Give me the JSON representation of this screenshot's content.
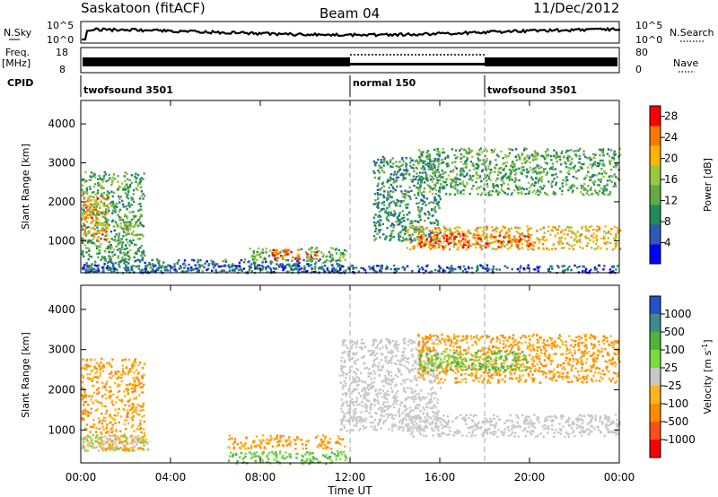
{
  "header": {
    "station": "Saskatoon (fitACF)",
    "beam": "Beam 04",
    "date": "11/Dec/2012"
  },
  "top_panels": {
    "nsky_label": "N.Sky",
    "nsearch_label": "N.Search",
    "noise_axis_top": "10^5",
    "noise_axis_bottom": "10^0",
    "freq_label_line1": "Freq.",
    "freq_label_line2": "[MHz]",
    "freq_ticks": [
      18,
      8
    ],
    "nave_ticks": [
      80,
      0
    ],
    "nave_label": "Nave",
    "cpid_label": "CPID",
    "cpid_segments": [
      {
        "label": "twofsound 3501",
        "start_hour": 0,
        "end_hour": 12
      },
      {
        "label": "normal 150",
        "start_hour": 12,
        "end_hour": 18
      },
      {
        "label": "twofsound 3501",
        "start_hour": 18,
        "end_hour": 24
      }
    ]
  },
  "chart_data": [
    {
      "type": "heatmap",
      "panel": "power",
      "title": "",
      "xlabel": "Time UT",
      "ylabel": "Slant Range [km]",
      "xlim": [
        0,
        24
      ],
      "ylim": [
        180,
        4600
      ],
      "y_ticks": [
        1000,
        2000,
        3000,
        4000
      ],
      "x_tick_labels": [
        "00:00",
        "04:00",
        "08:00",
        "12:00",
        "16:00",
        "20:00",
        "00:00"
      ],
      "x_tick_hours": [
        0,
        4,
        8,
        12,
        16,
        20,
        24
      ],
      "colorbar": {
        "label": "Power [dB]",
        "ticks": [
          4,
          8,
          12,
          16,
          20,
          24,
          28
        ],
        "range": [
          0,
          30
        ],
        "colors": [
          "#0000ff",
          "#2d5ab4",
          "#1e8c5a",
          "#64aa46",
          "#96c83c",
          "#ffb400",
          "#ff7800",
          "#ff0000"
        ]
      },
      "scatter_regions": [
        {
          "t": [
            0.0,
            2.8
          ],
          "r": [
            500,
            2800
          ],
          "value": 12
        },
        {
          "t": [
            0.0,
            1.2
          ],
          "r": [
            1000,
            2200
          ],
          "value": 22
        },
        {
          "t": [
            1.5,
            2.6
          ],
          "r": [
            1150,
            1600
          ],
          "value": 14
        },
        {
          "t": [
            0.0,
            11.5
          ],
          "r": [
            200,
            550
          ],
          "value": 8
        },
        {
          "t": [
            7.5,
            11.8
          ],
          "r": [
            500,
            850
          ],
          "value": 14
        },
        {
          "t": [
            8.5,
            10.5
          ],
          "r": [
            550,
            800
          ],
          "value": 27
        },
        {
          "t": [
            13.0,
            16.0
          ],
          "r": [
            1000,
            3200
          ],
          "value": 10
        },
        {
          "t": [
            14.5,
            24.0
          ],
          "r": [
            800,
            1400
          ],
          "value": 20
        },
        {
          "t": [
            15.0,
            20.0
          ],
          "r": [
            850,
            1200
          ],
          "value": 26
        },
        {
          "t": [
            15.0,
            24.0
          ],
          "r": [
            2200,
            3400
          ],
          "value": 12
        },
        {
          "t": [
            0.0,
            24.0
          ],
          "r": [
            200,
            400
          ],
          "value": 6
        }
      ]
    },
    {
      "type": "heatmap",
      "panel": "velocity",
      "title": "",
      "xlabel": "Time UT",
      "ylabel": "Slant Range [km]",
      "xlim": [
        0,
        24
      ],
      "ylim": [
        180,
        4600
      ],
      "y_ticks": [
        1000,
        2000,
        3000,
        4000
      ],
      "x_tick_labels": [
        "00:00",
        "04:00",
        "08:00",
        "12:00",
        "16:00",
        "20:00",
        "00:00"
      ],
      "x_tick_hours": [
        0,
        4,
        8,
        12,
        16,
        20,
        24
      ],
      "colorbar": {
        "label": "Velocity [m s^-1]",
        "ticks": [
          "1000",
          "500",
          "100",
          "25",
          "-25",
          "-100",
          "-500",
          "-1000"
        ],
        "colors": [
          "#2850c8",
          "#3c8c8c",
          "#50b43c",
          "#78dc3c",
          "#c8c8c8",
          "#ffb41e",
          "#ff8c00",
          "#ff5014",
          "#ff0000"
        ]
      },
      "scatter_regions": [
        {
          "t": [
            0.0,
            2.8
          ],
          "r": [
            500,
            2800
          ],
          "value": -100
        },
        {
          "t": [
            0.0,
            3.0
          ],
          "r": [
            500,
            900
          ],
          "value": 25
        },
        {
          "t": [
            6.5,
            11.8
          ],
          "r": [
            550,
            900
          ],
          "value": -100
        },
        {
          "t": [
            6.5,
            11.8
          ],
          "r": [
            180,
            500
          ],
          "value": 100
        },
        {
          "t": [
            11.5,
            16.0
          ],
          "r": [
            1000,
            3300
          ],
          "value": 0
        },
        {
          "t": [
            14.5,
            24.0
          ],
          "r": [
            850,
            1400
          ],
          "value": 0
        },
        {
          "t": [
            15.0,
            24.0
          ],
          "r": [
            2200,
            3400
          ],
          "value": -100
        },
        {
          "t": [
            15.0,
            20.0
          ],
          "r": [
            2500,
            3000
          ],
          "value": 100
        }
      ]
    }
  ]
}
